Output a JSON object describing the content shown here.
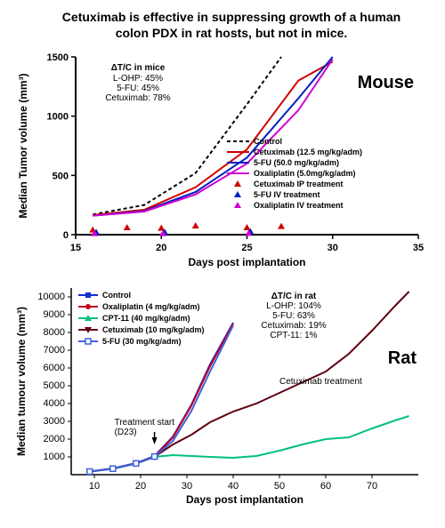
{
  "title": "Cetuximab is effective in suppressing growth of a human colon PDX in rat hosts, but not in mice.",
  "mouse": {
    "species_label": "Mouse",
    "xlabel": "Days post implantation",
    "ylabel": "Median Tumor volume (mm³)",
    "xlim": [
      15,
      35
    ],
    "xtick_step": 5,
    "ylim": [
      0,
      1500
    ],
    "ytick_step": 500,
    "info": {
      "header": "ΔT/C in mice",
      "lines": [
        "L-OHP: 45%",
        "5-FU: 45%",
        "Cetuximab: 78%"
      ]
    },
    "series": [
      {
        "name": "Control",
        "color": "#000000",
        "dash": "4,3",
        "points": [
          [
            16,
            170
          ],
          [
            19,
            250
          ],
          [
            22,
            520
          ],
          [
            25,
            1100
          ],
          [
            27,
            1500
          ]
        ]
      },
      {
        "name": "Cetuximab (12.5 mg/kg/adm)",
        "color": "#d10000",
        "dash": "",
        "points": [
          [
            16,
            165
          ],
          [
            19,
            210
          ],
          [
            22,
            400
          ],
          [
            25,
            720
          ],
          [
            28,
            1300
          ],
          [
            30,
            1460
          ]
        ]
      },
      {
        "name": "5-FU (50.0 mg/kg/adm)",
        "color": "#0020c0",
        "dash": "",
        "points": [
          [
            16,
            160
          ],
          [
            19,
            200
          ],
          [
            22,
            360
          ],
          [
            25,
            650
          ],
          [
            28,
            1150
          ],
          [
            30,
            1500
          ]
        ]
      },
      {
        "name": "Oxaliplatin (5.0mg/kg/adm)",
        "color": "#d000d0",
        "dash": "",
        "points": [
          [
            16,
            160
          ],
          [
            19,
            195
          ],
          [
            22,
            340
          ],
          [
            25,
            600
          ],
          [
            28,
            1050
          ],
          [
            30,
            1480
          ]
        ]
      }
    ],
    "markers": [
      {
        "name": "Cetuximab IP treatment",
        "color": "#d10000",
        "shape": "tri",
        "points": [
          [
            16,
            40
          ],
          [
            18,
            60
          ],
          [
            20,
            55
          ],
          [
            22,
            75
          ],
          [
            25,
            60
          ],
          [
            27,
            70
          ]
        ]
      },
      {
        "name": "5-FU IV treatment",
        "color": "#0020c0",
        "shape": "tri",
        "points": [
          [
            16.2,
            20
          ],
          [
            20.2,
            20
          ],
          [
            25.2,
            25
          ]
        ]
      },
      {
        "name": "Oxaliplatin IV treatment",
        "color": "#d000d0",
        "shape": "tri",
        "points": [
          [
            16.1,
            10
          ],
          [
            20.1,
            10
          ],
          [
            25.1,
            12
          ]
        ]
      }
    ]
  },
  "rat": {
    "species_label": "Rat",
    "xlabel": "Days post implantation",
    "ylabel": "Median tumour volume (mm³)",
    "xlim": [
      5,
      80
    ],
    "xticks": [
      10,
      20,
      30,
      40,
      50,
      60,
      70
    ],
    "ylim": [
      0,
      10500
    ],
    "yticks": [
      1000,
      2000,
      3000,
      4000,
      5000,
      6000,
      7000,
      8000,
      9000,
      10000
    ],
    "info": {
      "header": "ΔT/C in rat",
      "lines": [
        "L-OHP: 104%",
        "5-FU: 63%",
        "Cetuximab: 19%",
        "CPT-11: 1%"
      ]
    },
    "treatment_start_label": "Treatment start (D23)",
    "cetuximab_annot": "Cetuximab treatment",
    "series": [
      {
        "name": "Control",
        "color": "#1030d0",
        "marker": "sq",
        "points": [
          [
            9,
            180
          ],
          [
            14,
            350
          ],
          [
            19,
            650
          ],
          [
            23,
            1050
          ],
          [
            27,
            2150
          ],
          [
            31,
            3950
          ],
          [
            35,
            6200
          ],
          [
            40,
            8550
          ]
        ]
      },
      {
        "name": "Oxaliplatin (4 mg/kg/adm)",
        "color": "#c00020",
        "marker": "circ",
        "points": [
          [
            9,
            175
          ],
          [
            14,
            340
          ],
          [
            19,
            640
          ],
          [
            23,
            1030
          ],
          [
            27,
            2100
          ],
          [
            31,
            3900
          ],
          [
            35,
            6100
          ],
          [
            40,
            8500
          ]
        ]
      },
      {
        "name": "CPT-11 (40 mg/kg/adm)",
        "color": "#00c080",
        "marker": "tri",
        "points": [
          [
            9,
            170
          ],
          [
            14,
            330
          ],
          [
            19,
            620
          ],
          [
            23,
            1000
          ],
          [
            27,
            1100
          ],
          [
            31,
            1050
          ],
          [
            35,
            1000
          ],
          [
            40,
            950
          ],
          [
            45,
            1050
          ],
          [
            50,
            1350
          ],
          [
            55,
            1700
          ],
          [
            60,
            2000
          ],
          [
            65,
            2100
          ],
          [
            70,
            2600
          ],
          [
            75,
            3050
          ],
          [
            78,
            3300
          ]
        ]
      },
      {
        "name": "Cetuximab (10 mg/kg/adm)",
        "color": "#600010",
        "marker": "dtri",
        "points": [
          [
            9,
            172
          ],
          [
            14,
            335
          ],
          [
            19,
            630
          ],
          [
            23,
            1010
          ],
          [
            27,
            1700
          ],
          [
            31,
            2250
          ],
          [
            35,
            2950
          ],
          [
            40,
            3550
          ],
          [
            45,
            4000
          ],
          [
            50,
            4600
          ],
          [
            55,
            5200
          ],
          [
            60,
            5800
          ],
          [
            65,
            6800
          ],
          [
            70,
            8100
          ],
          [
            75,
            9500
          ],
          [
            78,
            10300
          ]
        ]
      },
      {
        "name": "5-FU (30 mg/kg/adm)",
        "color": "#4060e0",
        "marker": "osq",
        "points": [
          [
            9,
            174
          ],
          [
            14,
            338
          ],
          [
            19,
            635
          ],
          [
            23,
            1020
          ],
          [
            27,
            1900
          ],
          [
            31,
            3600
          ],
          [
            35,
            5800
          ],
          [
            40,
            8400
          ]
        ]
      }
    ]
  },
  "colors": {
    "bg": "#ffffff",
    "axis": "#000000"
  }
}
